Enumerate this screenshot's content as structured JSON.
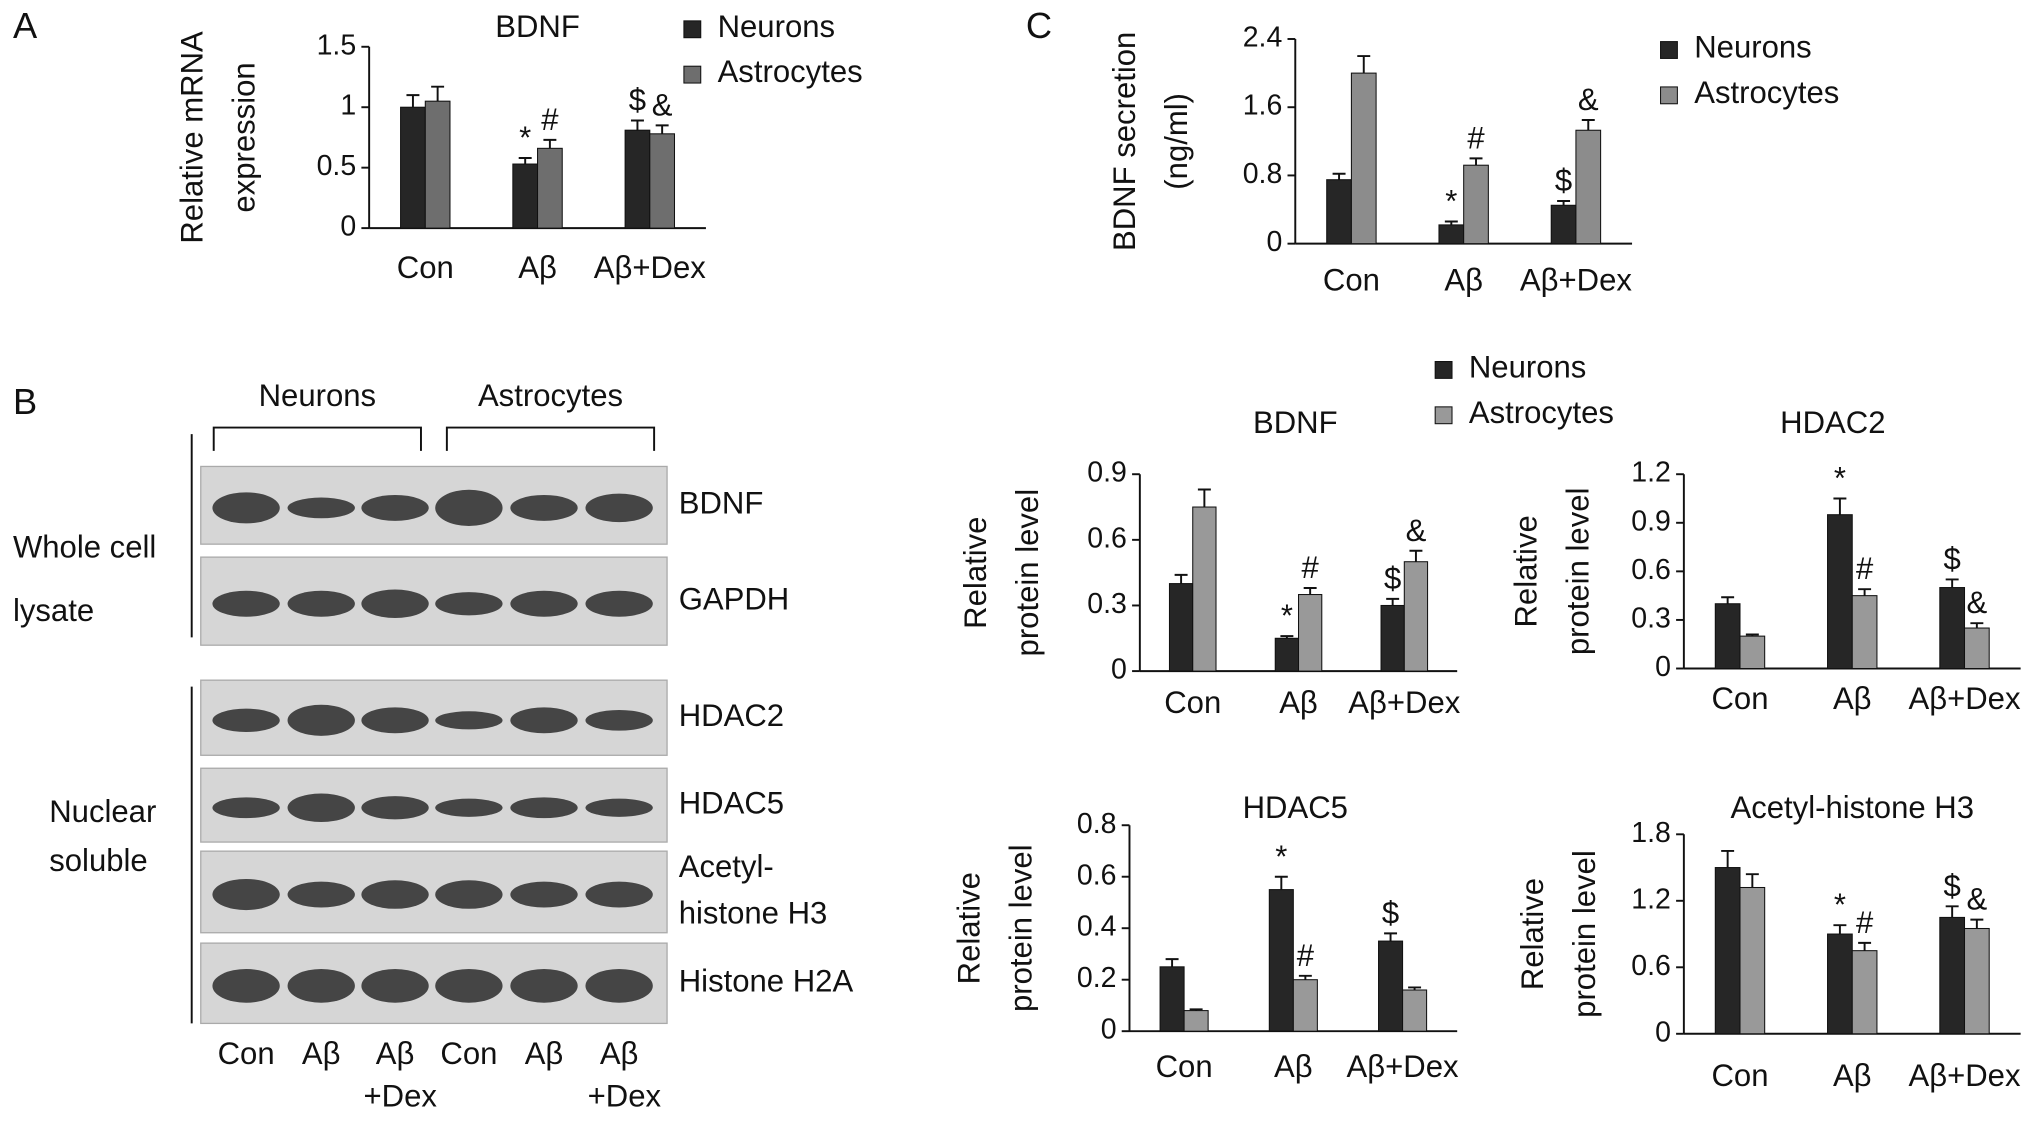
{
  "panel_labels": [
    "A",
    "B",
    "C"
  ],
  "chart_data": [
    {
      "type": "bar",
      "title": "BDNF",
      "ylabel": [
        "Relative mRNA",
        "expression"
      ],
      "categories": [
        "Con",
        "Aβ",
        "Aβ+Dex"
      ],
      "series": [
        {
          "name": "Neurons",
          "color": "#262626",
          "values": [
            1.0,
            0.53,
            0.81
          ],
          "errors": [
            0.1,
            0.05,
            0.08
          ],
          "marks": [
            null,
            "*",
            "$"
          ]
        },
        {
          "name": "Astrocytes",
          "color": "#6e6e6e",
          "values": [
            1.05,
            0.66,
            0.78
          ],
          "errors": [
            0.12,
            0.07,
            0.07
          ],
          "marks": [
            null,
            "#",
            "&"
          ]
        }
      ],
      "ylim": [
        0,
        1.5
      ],
      "yticks": [
        0,
        0.5,
        1,
        1.5
      ],
      "legend": true
    },
    {
      "type": "bar",
      "ylabel": [
        "BDNF secretion",
        "(ng/ml)"
      ],
      "categories": [
        "Con",
        "Aβ",
        "Aβ+Dex"
      ],
      "series": [
        {
          "name": "Neurons",
          "color": "#262626",
          "values": [
            0.75,
            0.22,
            0.45
          ],
          "errors": [
            0.07,
            0.04,
            0.05
          ],
          "marks": [
            null,
            "*",
            "$"
          ]
        },
        {
          "name": "Astrocytes",
          "color": "#8c8c8c",
          "values": [
            2.0,
            0.92,
            1.33
          ],
          "errors": [
            0.2,
            0.08,
            0.12
          ],
          "marks": [
            null,
            "#",
            "&"
          ]
        }
      ],
      "ylim": [
        0,
        2.4
      ],
      "yticks": [
        0,
        0.8,
        1.6,
        2.4
      ],
      "legend": true
    },
    {
      "type": "bar",
      "title": "BDNF",
      "ylabel": [
        "Relative",
        "protein level"
      ],
      "categories": [
        "Con",
        "Aβ",
        "Aβ+Dex"
      ],
      "series": [
        {
          "name": "Neurons",
          "color": "#262626",
          "values": [
            0.4,
            0.15,
            0.3
          ],
          "errors": [
            0.04,
            0.01,
            0.03
          ],
          "marks": [
            null,
            "*",
            "$"
          ]
        },
        {
          "name": "Astrocytes",
          "color": "#999999",
          "values": [
            0.75,
            0.35,
            0.5
          ],
          "errors": [
            0.08,
            0.03,
            0.05
          ],
          "marks": [
            null,
            "#",
            "&"
          ]
        }
      ],
      "ylim": [
        0,
        0.9
      ],
      "yticks": [
        0,
        0.3,
        0.6,
        0.9
      ],
      "legend": true
    },
    {
      "type": "bar",
      "title": "HDAC2",
      "ylabel": [
        "Relative",
        "protein level"
      ],
      "categories": [
        "Con",
        "Aβ",
        "Aβ+Dex"
      ],
      "series": [
        {
          "name": "Neurons",
          "color": "#262626",
          "values": [
            0.4,
            0.95,
            0.5
          ],
          "errors": [
            0.04,
            0.1,
            0.05
          ],
          "marks": [
            null,
            "*",
            "$"
          ]
        },
        {
          "name": "Astrocytes",
          "color": "#999999",
          "values": [
            0.2,
            0.45,
            0.25
          ],
          "errors": [
            0.01,
            0.04,
            0.03
          ],
          "marks": [
            null,
            "#",
            "&"
          ]
        }
      ],
      "ylim": [
        0,
        1.2
      ],
      "yticks": [
        0,
        0.3,
        0.6,
        0.9,
        1.2
      ],
      "legend": false
    },
    {
      "type": "bar",
      "title": "HDAC5",
      "ylabel": [
        "Relative",
        "protein level"
      ],
      "categories": [
        "Con",
        "Aβ",
        "Aβ+Dex"
      ],
      "series": [
        {
          "name": "Neurons",
          "color": "#262626",
          "values": [
            0.25,
            0.55,
            0.35
          ],
          "errors": [
            0.03,
            0.05,
            0.03
          ],
          "marks": [
            null,
            "*",
            "$"
          ]
        },
        {
          "name": "Astrocytes",
          "color": "#999999",
          "values": [
            0.08,
            0.2,
            0.16
          ],
          "errors": [
            0.005,
            0.015,
            0.01
          ],
          "marks": [
            null,
            "#",
            null
          ]
        }
      ],
      "ylim": [
        0,
        0.8
      ],
      "yticks": [
        0,
        0.2,
        0.4,
        0.6,
        0.8
      ],
      "legend": false
    },
    {
      "type": "bar",
      "title": "Acetyl-histone H3",
      "ylabel": [
        "Relative",
        "protein level"
      ],
      "categories": [
        "Con",
        "Aβ",
        "Aβ+Dex"
      ],
      "series": [
        {
          "name": "Neurons",
          "color": "#262626",
          "values": [
            1.5,
            0.9,
            1.05
          ],
          "errors": [
            0.15,
            0.08,
            0.1
          ],
          "marks": [
            null,
            "*",
            "$"
          ]
        },
        {
          "name": "Astrocytes",
          "color": "#999999",
          "values": [
            1.32,
            0.75,
            0.95
          ],
          "errors": [
            0.12,
            0.07,
            0.08
          ],
          "marks": [
            null,
            "#",
            "&"
          ]
        }
      ],
      "ylim": [
        0,
        1.8
      ],
      "yticks": [
        0,
        0.6,
        1.2,
        1.8
      ],
      "legend": false
    }
  ],
  "blot": {
    "groups": [
      "Neurons",
      "Astrocytes"
    ],
    "sections": [
      [
        "Whole cell",
        "lysate"
      ],
      [
        "Nuclear",
        "soluble"
      ]
    ],
    "bands": [
      [
        "BDNF"
      ],
      [
        "GAPDH"
      ],
      [
        "HDAC2"
      ],
      [
        "HDAC5"
      ],
      [
        "Acetyl-",
        "histone H3"
      ],
      [
        "Histone H2A"
      ]
    ],
    "lanes": [
      [
        "Con"
      ],
      [
        "Aβ"
      ],
      [
        "Aβ",
        "+Dex"
      ],
      [
        "Con"
      ],
      [
        "Aβ"
      ],
      [
        "Aβ",
        "+Dex"
      ]
    ]
  }
}
